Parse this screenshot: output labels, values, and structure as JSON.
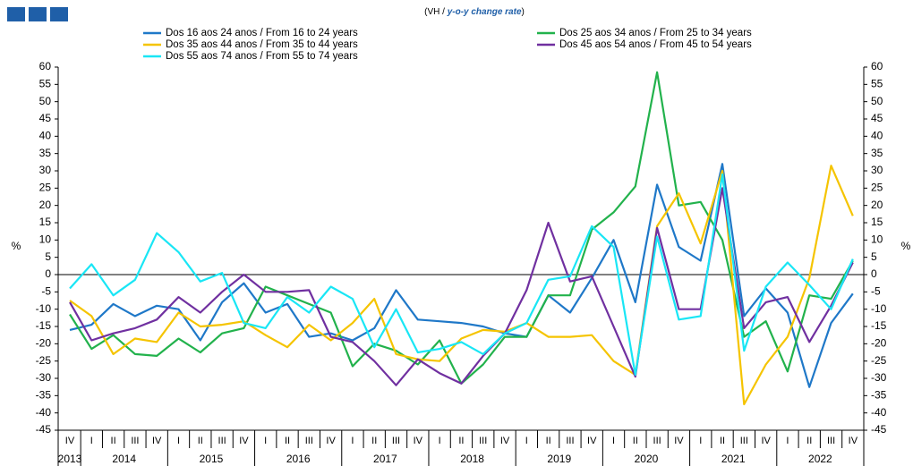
{
  "chart_data": {
    "type": "line",
    "subtitle": [
      "(VH / ",
      "y-o-y change rate",
      ")"
    ],
    "ylabel": "%",
    "categories": [
      "IV",
      "I",
      "II",
      "III",
      "IV",
      "I",
      "II",
      "III",
      "IV",
      "I",
      "II",
      "III",
      "IV",
      "I",
      "II",
      "III",
      "IV",
      "I",
      "II",
      "III",
      "IV",
      "I",
      "II",
      "III",
      "IV",
      "I",
      "II",
      "III",
      "IV",
      "I",
      "II",
      "III",
      "IV",
      "I",
      "II",
      "III",
      "IV"
    ],
    "years": [
      "2013",
      "2014",
      "2015",
      "2016",
      "2017",
      "2018",
      "2019",
      "2020",
      "2021",
      "2022"
    ],
    "ylim": [
      -45,
      60
    ],
    "yticks": [
      -45,
      -40,
      -35,
      -30,
      -25,
      -20,
      -15,
      -10,
      -5,
      0,
      5,
      10,
      15,
      20,
      25,
      30,
      35,
      40,
      45,
      50,
      55,
      60
    ],
    "series": [
      {
        "name": "Dos 16 aos 24 anos / From 16 to 24 years",
        "color": "#1f78c8",
        "values": [
          -16,
          -14.5,
          -8.5,
          -12,
          -9,
          -10,
          -19,
          -8,
          -2.5,
          -11,
          -8.5,
          -18,
          -17,
          -19,
          -15.5,
          -4.5,
          -13,
          -13.5,
          -14,
          -15,
          -17,
          -18,
          -6,
          -11,
          -1,
          10,
          -8,
          26,
          8,
          4,
          32,
          -12,
          -4,
          -11,
          -32.5,
          -14,
          -5.5
        ]
      },
      {
        "name": "Dos 25 aos 34 anos / From 25 to 34 years",
        "color": "#22b24c",
        "values": [
          -11.5,
          -21.5,
          -17.5,
          -23,
          -23.5,
          -18.5,
          -22.5,
          -17,
          -15.5,
          -3.5,
          -6,
          -8.5,
          -11,
          -26.5,
          -20,
          -22,
          -26,
          -19,
          -31.5,
          -26,
          -18,
          -18,
          -6,
          -6,
          13,
          18,
          25.5,
          58.5,
          20,
          21,
          10,
          -18,
          -13.5,
          -28,
          -6,
          -7,
          4
        ]
      },
      {
        "name": "Dos 35 aos 44 anos / From 35 to 44 years",
        "color": "#f5c400",
        "values": [
          -7.5,
          -12,
          -23,
          -18.5,
          -19.5,
          -11,
          -15,
          -14.5,
          -13.5,
          -17.5,
          -21,
          -14.5,
          -19,
          -14,
          -7,
          -23,
          -24.5,
          -25,
          -18.5,
          -16,
          -16.5,
          -14,
          -18,
          -18,
          -17.5,
          -25,
          -29,
          14,
          23.5,
          9,
          30,
          -37.5,
          -26,
          -18,
          -1,
          31.5,
          17
        ]
      },
      {
        "name": "Dos 45 aos 54 anos / From 45 to 54 years",
        "color": "#7030a0",
        "values": [
          -8,
          -19,
          -17,
          -15.5,
          -13,
          -6.5,
          -11,
          -5,
          0,
          -5,
          -5,
          -4.5,
          -18,
          -19.5,
          -25,
          -32,
          -24.5,
          -28.5,
          -31.5,
          -23.5,
          -17,
          -4.5,
          15,
          -2,
          -0.5,
          -15,
          -29.5,
          13.5,
          -10,
          -10,
          25,
          -15.5,
          -8,
          -6.5,
          -19.5,
          -9,
          3.5
        ]
      },
      {
        "name": "Dos 55 aos 74 anos / From 55 to 74 years",
        "color": "#19e6f5",
        "values": [
          -4,
          3,
          -6,
          -1.5,
          12,
          6.5,
          -2,
          0.5,
          -14,
          -15.5,
          -6.5,
          -11,
          -3.5,
          -7,
          -21,
          -10,
          -22.5,
          -21.5,
          -19.5,
          -23,
          -17,
          -14,
          -1.5,
          -0.5,
          14,
          8,
          -29,
          11,
          -13,
          -12,
          29,
          -22,
          -3.5,
          3.5,
          -3,
          -10,
          4.5
        ]
      }
    ]
  }
}
